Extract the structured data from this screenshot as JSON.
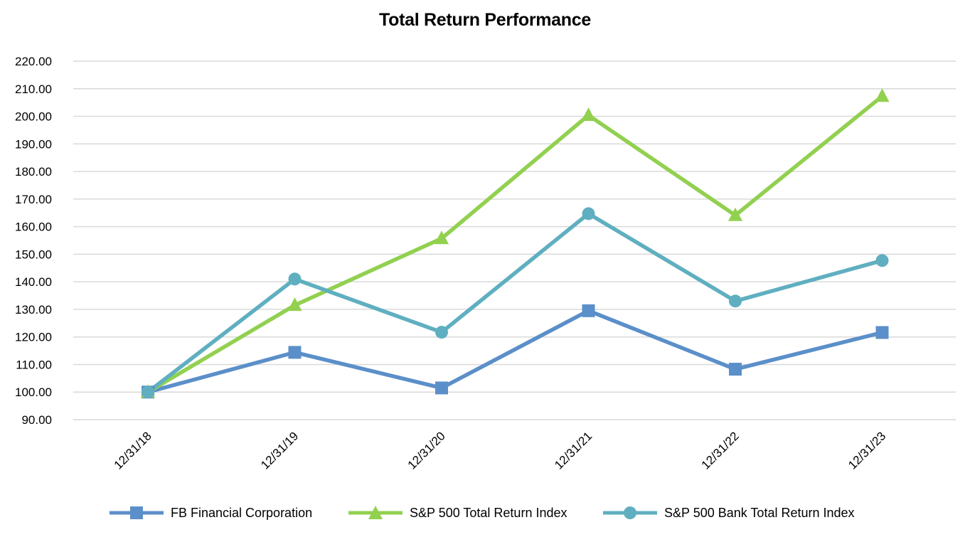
{
  "chart_data": {
    "type": "line",
    "title": "Total Return Performance",
    "xlabel": "",
    "ylabel": "",
    "categories": [
      "12/31/18",
      "12/31/19",
      "12/31/20",
      "12/31/21",
      "12/31/22",
      "12/31/23"
    ],
    "ylim": [
      90,
      220
    ],
    "yticks": [
      "90.00",
      "100.00",
      "110.00",
      "120.00",
      "130.00",
      "140.00",
      "150.00",
      "160.00",
      "170.00",
      "180.00",
      "190.00",
      "200.00",
      "210.00",
      "220.00"
    ],
    "grid": true,
    "legend_position": "bottom",
    "series": [
      {
        "name": "FB Financial Corporation",
        "values": [
          100.0,
          114.4,
          101.5,
          129.5,
          108.3,
          121.6
        ],
        "color": "#5B8FC9",
        "marker": "square"
      },
      {
        "name": "S&P 500 Total Return Index",
        "values": [
          100.0,
          131.5,
          155.7,
          200.4,
          164.1,
          207.3
        ],
        "color": "#92D050",
        "marker": "triangle"
      },
      {
        "name": "S&P 500 Bank Total Return Index",
        "values": [
          100.0,
          141.0,
          121.7,
          164.7,
          133.0,
          147.7
        ],
        "color": "#5FAFC0",
        "marker": "circle"
      }
    ]
  }
}
